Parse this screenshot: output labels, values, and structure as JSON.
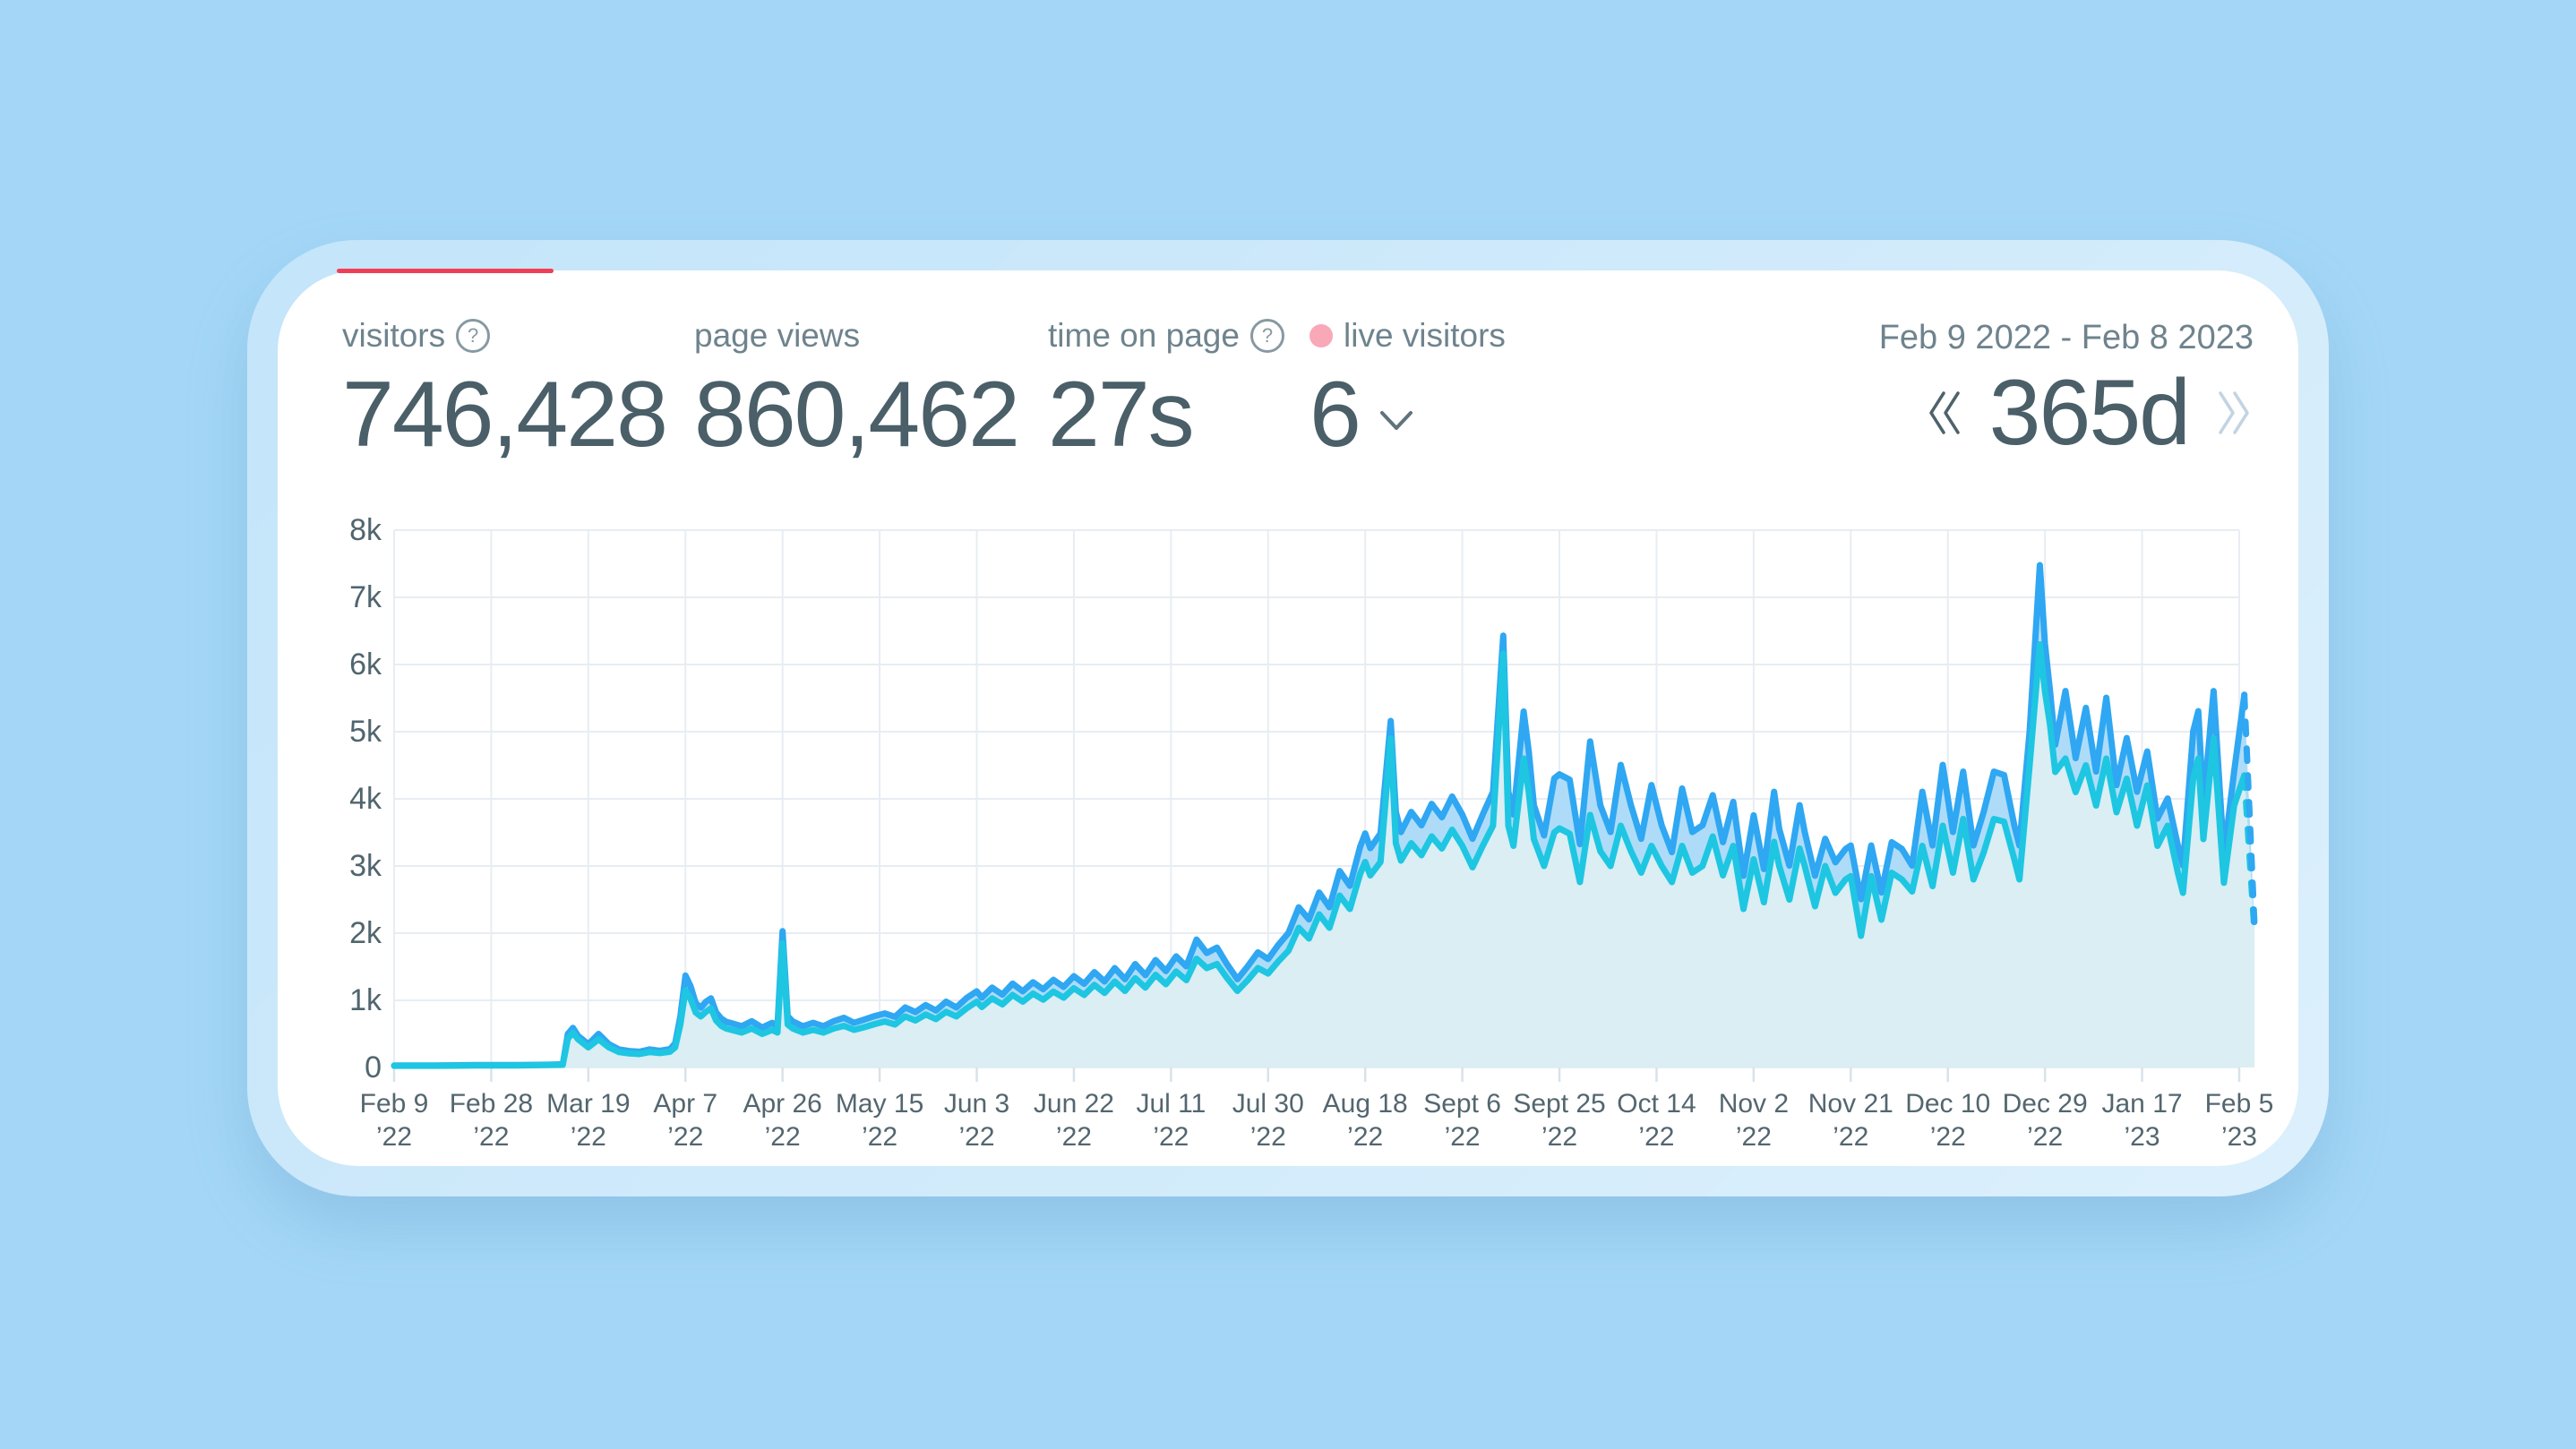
{
  "colors": {
    "background": "#a4d7f7",
    "card": "#ffffff",
    "progress_red": "#f23e55",
    "text_dark": "#4a5f68",
    "text_muted": "#6e838d",
    "live_dot_pink": "#f9a8b8",
    "line_pageviews": "#2fa7f2",
    "line_visitors": "#1ec6e2",
    "fill_between": "#aedcf8",
    "fill_under": "#daeef4",
    "grid": "#e7edf2",
    "tick": "#d9e2e9",
    "nav_prev": "#4e626b",
    "nav_next": "#c2d4e2"
  },
  "stats": [
    {
      "label": "visitors",
      "value": "746,428",
      "help_icon": "?"
    },
    {
      "label": "page views",
      "value": "860,462"
    },
    {
      "label": "time on page",
      "value": "27s",
      "help_icon": "?"
    },
    {
      "label": "live visitors",
      "value": "6"
    }
  ],
  "date_picker": {
    "range_label": "Feb 9 2022 - Feb 8 2023",
    "duration": "365d"
  },
  "chart_data": {
    "type": "area",
    "title": "",
    "xlabel": "",
    "ylabel": "",
    "ylim": [
      0,
      8000
    ],
    "grid": true,
    "legend_position": "none",
    "y_tick_labels": [
      "8k",
      "7k",
      "6k",
      "5k",
      "4k",
      "3k",
      "2k",
      "1k",
      "0"
    ],
    "x_tick_day_interval": 19,
    "x_total_days": 364,
    "x_tick_labels": [
      {
        "date": "Feb 9",
        "year": "’22"
      },
      {
        "date": "Feb 28",
        "year": "’22"
      },
      {
        "date": "Mar 19",
        "year": "’22"
      },
      {
        "date": "Apr 7",
        "year": "’22"
      },
      {
        "date": "Apr 26",
        "year": "’22"
      },
      {
        "date": "May 15",
        "year": "’22"
      },
      {
        "date": "Jun 3",
        "year": "’22"
      },
      {
        "date": "Jun 22",
        "year": "’22"
      },
      {
        "date": "Jul 11",
        "year": "’22"
      },
      {
        "date": "Jul 30",
        "year": "’22"
      },
      {
        "date": "Aug 18",
        "year": "’22"
      },
      {
        "date": "Sept 6",
        "year": "’22"
      },
      {
        "date": "Sept 25",
        "year": "’22"
      },
      {
        "date": "Oct 14",
        "year": "’22"
      },
      {
        "date": "Nov 2",
        "year": "’22"
      },
      {
        "date": "Nov 21",
        "year": "’22"
      },
      {
        "date": "Dec 10",
        "year": "’22"
      },
      {
        "date": "Dec 29",
        "year": "’22"
      },
      {
        "date": "Jan 17",
        "year": "’23"
      },
      {
        "date": "Feb 5",
        "year": "’23"
      }
    ],
    "series_names": [
      "visitors",
      "page views"
    ],
    "points_day_visitors_pageviews": [
      [
        0,
        25,
        30
      ],
      [
        8,
        25,
        30
      ],
      [
        16,
        30,
        36
      ],
      [
        24,
        30,
        36
      ],
      [
        30,
        36,
        42
      ],
      [
        33,
        40,
        48
      ],
      [
        34,
        430,
        500
      ],
      [
        35,
        520,
        590
      ],
      [
        36,
        420,
        470
      ],
      [
        37,
        360,
        410
      ],
      [
        38,
        300,
        345
      ],
      [
        40,
        420,
        500
      ],
      [
        42,
        300,
        350
      ],
      [
        44,
        230,
        270
      ],
      [
        46,
        210,
        245
      ],
      [
        48,
        200,
        235
      ],
      [
        50,
        230,
        270
      ],
      [
        52,
        215,
        250
      ],
      [
        54,
        235,
        275
      ],
      [
        55,
        300,
        360
      ],
      [
        56,
        640,
        760
      ],
      [
        57,
        1150,
        1370
      ],
      [
        58,
        1020,
        1210
      ],
      [
        59,
        820,
        960
      ],
      [
        60,
        760,
        890
      ],
      [
        61,
        830,
        980
      ],
      [
        62,
        880,
        1030
      ],
      [
        63,
        700,
        820
      ],
      [
        64,
        620,
        730
      ],
      [
        65,
        580,
        680
      ],
      [
        66,
        560,
        660
      ],
      [
        68,
        520,
        615
      ],
      [
        70,
        580,
        690
      ],
      [
        72,
        500,
        595
      ],
      [
        74,
        560,
        665
      ],
      [
        75,
        520,
        615
      ],
      [
        76,
        1850,
        2030
      ],
      [
        77,
        640,
        765
      ],
      [
        78,
        580,
        685
      ],
      [
        80,
        520,
        615
      ],
      [
        82,
        560,
        665
      ],
      [
        84,
        520,
        615
      ],
      [
        86,
        580,
        690
      ],
      [
        88,
        620,
        740
      ],
      [
        90,
        560,
        665
      ],
      [
        92,
        600,
        715
      ],
      [
        94,
        645,
        765
      ],
      [
        96,
        685,
        805
      ],
      [
        98,
        640,
        755
      ],
      [
        100,
        760,
        895
      ],
      [
        102,
        700,
        825
      ],
      [
        104,
        790,
        930
      ],
      [
        106,
        720,
        850
      ],
      [
        108,
        830,
        980
      ],
      [
        110,
        760,
        895
      ],
      [
        112,
        880,
        1035
      ],
      [
        114,
        980,
        1135
      ],
      [
        115,
        900,
        1040
      ],
      [
        117,
        1030,
        1190
      ],
      [
        119,
        940,
        1085
      ],
      [
        121,
        1080,
        1250
      ],
      [
        123,
        980,
        1135
      ],
      [
        125,
        1100,
        1270
      ],
      [
        127,
        1010,
        1165
      ],
      [
        129,
        1130,
        1305
      ],
      [
        131,
        1040,
        1200
      ],
      [
        133,
        1180,
        1360
      ],
      [
        135,
        1080,
        1245
      ],
      [
        137,
        1230,
        1420
      ],
      [
        139,
        1110,
        1280
      ],
      [
        141,
        1280,
        1480
      ],
      [
        143,
        1140,
        1315
      ],
      [
        145,
        1330,
        1540
      ],
      [
        147,
        1190,
        1375
      ],
      [
        149,
        1380,
        1600
      ],
      [
        151,
        1240,
        1435
      ],
      [
        153,
        1430,
        1655
      ],
      [
        155,
        1300,
        1505
      ],
      [
        157,
        1620,
        1905
      ],
      [
        159,
        1480,
        1705
      ],
      [
        161,
        1540,
        1785
      ],
      [
        163,
        1330,
        1535
      ],
      [
        165,
        1140,
        1315
      ],
      [
        167,
        1300,
        1505
      ],
      [
        169,
        1480,
        1715
      ],
      [
        171,
        1400,
        1615
      ],
      [
        173,
        1580,
        1825
      ],
      [
        175,
        1740,
        2005
      ],
      [
        177,
        2080,
        2385
      ],
      [
        179,
        1920,
        2205
      ],
      [
        181,
        2280,
        2605
      ],
      [
        183,
        2080,
        2385
      ],
      [
        185,
        2560,
        2925
      ],
      [
        187,
        2360,
        2705
      ],
      [
        189,
        2880,
        3285
      ],
      [
        190,
        3060,
        3485
      ],
      [
        191,
        2860,
        3265
      ],
      [
        193,
        3060,
        3485
      ],
      [
        195,
        4900,
        5160
      ],
      [
        196,
        3340,
        3805
      ],
      [
        197,
        3080,
        3505
      ],
      [
        199,
        3340,
        3805
      ],
      [
        201,
        3160,
        3605
      ],
      [
        203,
        3440,
        3925
      ],
      [
        205,
        3260,
        3725
      ],
      [
        207,
        3540,
        4035
      ],
      [
        209,
        3300,
        3765
      ],
      [
        211,
        2980,
        3405
      ],
      [
        213,
        3300,
        3765
      ],
      [
        215,
        3600,
        4105
      ],
      [
        217,
        6160,
        6430
      ],
      [
        218,
        3600,
        4105
      ],
      [
        219,
        3300,
        3765
      ],
      [
        221,
        4600,
        5300
      ],
      [
        222,
        4100,
        4705
      ],
      [
        223,
        3400,
        3905
      ],
      [
        225,
        3000,
        3455
      ],
      [
        227,
        3500,
        4305
      ],
      [
        228,
        3560,
        4365
      ],
      [
        230,
        3480,
        4285
      ],
      [
        232,
        2760,
        3325
      ],
      [
        234,
        3760,
        4855
      ],
      [
        236,
        3220,
        3905
      ],
      [
        238,
        3000,
        3505
      ],
      [
        240,
        3600,
        4505
      ],
      [
        242,
        3220,
        3905
      ],
      [
        244,
        2900,
        3405
      ],
      [
        246,
        3300,
        4205
      ],
      [
        248,
        3000,
        3605
      ],
      [
        250,
        2760,
        3205
      ],
      [
        252,
        3300,
        4155
      ],
      [
        254,
        2900,
        3505
      ],
      [
        256,
        3000,
        3605
      ],
      [
        258,
        3440,
        4055
      ],
      [
        260,
        2860,
        3355
      ],
      [
        262,
        3300,
        3955
      ],
      [
        264,
        2360,
        2855
      ],
      [
        266,
        3100,
        3755
      ],
      [
        268,
        2460,
        2955
      ],
      [
        270,
        3360,
        4105
      ],
      [
        271,
        3000,
        3555
      ],
      [
        273,
        2500,
        3005
      ],
      [
        275,
        3260,
        3905
      ],
      [
        276,
        3000,
        3505
      ],
      [
        278,
        2400,
        2855
      ],
      [
        280,
        3000,
        3405
      ],
      [
        282,
        2600,
        3055
      ],
      [
        284,
        2800,
        3255
      ],
      [
        285,
        2850,
        3305
      ],
      [
        287,
        1960,
        2505
      ],
      [
        289,
        2850,
        3305
      ],
      [
        291,
        2200,
        2605
      ],
      [
        293,
        2900,
        3355
      ],
      [
        295,
        2800,
        3255
      ],
      [
        297,
        2620,
        3005
      ],
      [
        299,
        3300,
        4105
      ],
      [
        301,
        2700,
        3305
      ],
      [
        303,
        3600,
        4505
      ],
      [
        305,
        2900,
        3505
      ],
      [
        307,
        3700,
        4405
      ],
      [
        309,
        2800,
        3305
      ],
      [
        311,
        3200,
        3805
      ],
      [
        313,
        3700,
        4405
      ],
      [
        315,
        3660,
        4355
      ],
      [
        317,
        3100,
        3605
      ],
      [
        318,
        2800,
        3305
      ],
      [
        320,
        4500,
        5005
      ],
      [
        322,
        6300,
        7480
      ],
      [
        323,
        5600,
        6305
      ],
      [
        324,
        5100,
        5605
      ],
      [
        325,
        4400,
        4805
      ],
      [
        327,
        4600,
        5605
      ],
      [
        329,
        4100,
        4605
      ],
      [
        331,
        4500,
        5355
      ],
      [
        333,
        3900,
        4405
      ],
      [
        335,
        4600,
        5505
      ],
      [
        337,
        3800,
        4205
      ],
      [
        339,
        4300,
        4905
      ],
      [
        341,
        3600,
        4105
      ],
      [
        343,
        4200,
        4705
      ],
      [
        345,
        3300,
        3705
      ],
      [
        347,
        3600,
        4005
      ],
      [
        349,
        2900,
        3305
      ],
      [
        350,
        2600,
        3005
      ],
      [
        352,
        4300,
        5005
      ],
      [
        353,
        4600,
        5305
      ],
      [
        354,
        3400,
        3905
      ],
      [
        356,
        4900,
        5605
      ],
      [
        358,
        2750,
        3155
      ],
      [
        360,
        3900,
        4405
      ],
      [
        362,
        4350,
        5550
      ]
    ],
    "dashed_tail": {
      "from_day": 362,
      "to_day": 364,
      "visitors_start": 4350,
      "visitors_end": 2000,
      "pageviews_start": 5550,
      "pageviews_end": 2100
    }
  }
}
